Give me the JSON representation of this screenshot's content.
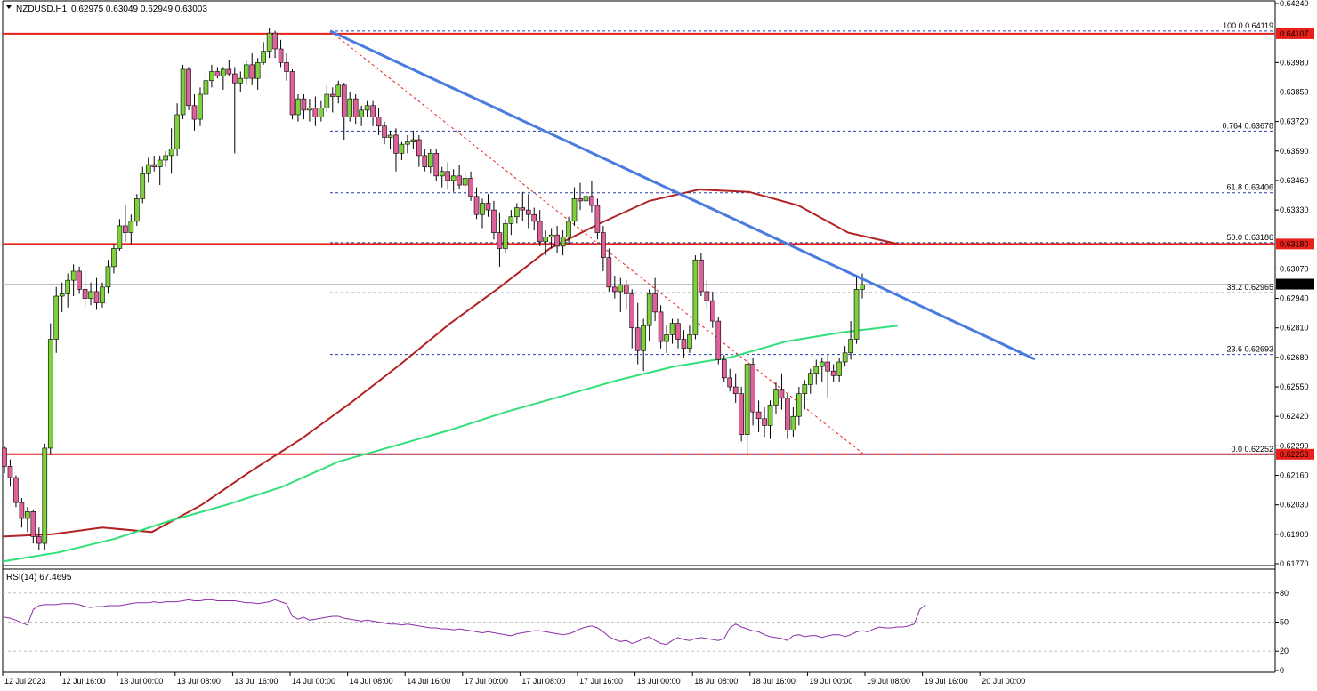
{
  "header": {
    "symbol": "NZDUSD,H1",
    "ohlc": "0.62975 0.63049 0.62949 0.63003"
  },
  "rsi_header": "RSI(14) 67.4695",
  "colors": {
    "bull": "#7fd13b",
    "bear": "#e0609a",
    "ma_short": "#b22222",
    "ma_long": "#32e07a",
    "trendline": "#4a7be0",
    "level": "#e8201a",
    "fib": "#2a3fa8",
    "rsi": "#8b2fa8"
  },
  "chart_data": [
    {
      "type": "candlestick",
      "symbol": "NZDUSD",
      "timeframe": "H1",
      "y_ticks": [
        "0.64240",
        "0.63980",
        "0.63850",
        "0.63720",
        "0.63590",
        "0.63460",
        "0.63330",
        "0.63070",
        "0.62940",
        "0.62810",
        "0.62680",
        "0.62550",
        "0.62420",
        "0.62290",
        "0.62160",
        "0.62030",
        "0.61900",
        "0.61770"
      ],
      "x_ticks": [
        "12 Jul 2023",
        "12 Jul 16:00",
        "13 Jul 00:00",
        "13 Jul 08:00",
        "13 Jul 16:00",
        "14 Jul 00:00",
        "14 Jul 08:00",
        "14 Jul 16:00",
        "17 Jul 00:00",
        "17 Jul 08:00",
        "17 Jul 16:00",
        "18 Jul 00:00",
        "18 Jul 08:00",
        "18 Jul 16:00",
        "19 Jul 00:00",
        "19 Jul 08:00",
        "19 Jul 16:00",
        "20 Jul 00:00"
      ],
      "ylim": [
        0.6177,
        0.6424
      ],
      "horizontal_levels": [
        {
          "value": 0.64107,
          "label": "0.64107"
        },
        {
          "value": 0.6318,
          "label": "0.63180"
        },
        {
          "value": 0.62253,
          "label": "0.62253"
        }
      ],
      "current_price": {
        "value": 0.63003,
        "label": "0.63003"
      },
      "fibonacci": [
        {
          "label": "100.0 0.64119",
          "value": 0.64119
        },
        {
          "label": "0.764 0.63678",
          "value": 0.63678
        },
        {
          "label": "61.8 0.63406",
          "value": 0.63406
        },
        {
          "label": "50.0 0.63186",
          "value": 0.63186
        },
        {
          "label": "38.2 0.62965",
          "value": 0.62965
        },
        {
          "label": "23.6 0.62693",
          "value": 0.62693
        },
        {
          "label": "0.0 0.62252",
          "value": 0.62252
        }
      ],
      "candles": [
        [
          0.6228,
          0.6229,
          0.6217,
          0.622
        ],
        [
          0.622,
          0.6223,
          0.6211,
          0.6215
        ],
        [
          0.6215,
          0.6216,
          0.6202,
          0.6204
        ],
        [
          0.6204,
          0.6206,
          0.6193,
          0.6197
        ],
        [
          0.6197,
          0.6202,
          0.6191,
          0.62
        ],
        [
          0.62,
          0.6201,
          0.6186,
          0.6189
        ],
        [
          0.6189,
          0.6193,
          0.6183,
          0.6186
        ],
        [
          0.6186,
          0.623,
          0.6183,
          0.6228
        ],
        [
          0.6228,
          0.6283,
          0.6225,
          0.6276
        ],
        [
          0.6276,
          0.6299,
          0.627,
          0.6295
        ],
        [
          0.6295,
          0.6301,
          0.6288,
          0.6296
        ],
        [
          0.6296,
          0.6305,
          0.629,
          0.6302
        ],
        [
          0.6302,
          0.6309,
          0.6295,
          0.6306
        ],
        [
          0.6306,
          0.6308,
          0.6296,
          0.6298
        ],
        [
          0.6298,
          0.6306,
          0.629,
          0.6294
        ],
        [
          0.6294,
          0.6301,
          0.6291,
          0.6297
        ],
        [
          0.6297,
          0.6303,
          0.6289,
          0.6292
        ],
        [
          0.6292,
          0.6301,
          0.629,
          0.6299
        ],
        [
          0.6299,
          0.6311,
          0.6296,
          0.6308
        ],
        [
          0.6308,
          0.6318,
          0.6305,
          0.6316
        ],
        [
          0.6316,
          0.6329,
          0.6315,
          0.6326
        ],
        [
          0.6326,
          0.6335,
          0.6319,
          0.6323
        ],
        [
          0.6323,
          0.6331,
          0.6318,
          0.6328
        ],
        [
          0.6328,
          0.634,
          0.6326,
          0.6338
        ],
        [
          0.6338,
          0.6352,
          0.6336,
          0.6349
        ],
        [
          0.6349,
          0.6356,
          0.6345,
          0.6353
        ],
        [
          0.6353,
          0.6357,
          0.635,
          0.6352
        ],
        [
          0.6352,
          0.6357,
          0.6344,
          0.6355
        ],
        [
          0.6355,
          0.6359,
          0.6352,
          0.6357
        ],
        [
          0.6357,
          0.6369,
          0.6349,
          0.636
        ],
        [
          0.636,
          0.638,
          0.6357,
          0.6375
        ],
        [
          0.6375,
          0.6397,
          0.6373,
          0.6395
        ],
        [
          0.6395,
          0.6396,
          0.6377,
          0.6379
        ],
        [
          0.6379,
          0.6384,
          0.6368,
          0.6373
        ],
        [
          0.6373,
          0.6387,
          0.637,
          0.6384
        ],
        [
          0.6384,
          0.6393,
          0.6382,
          0.639
        ],
        [
          0.639,
          0.6397,
          0.6387,
          0.6394
        ],
        [
          0.6394,
          0.6396,
          0.6391,
          0.6392
        ],
        [
          0.6392,
          0.6396,
          0.6386,
          0.6395
        ],
        [
          0.6395,
          0.6399,
          0.6392,
          0.6393
        ],
        [
          0.6393,
          0.6396,
          0.6358,
          0.6389
        ],
        [
          0.6389,
          0.6394,
          0.6385,
          0.6391
        ],
        [
          0.6391,
          0.6399,
          0.6388,
          0.6397
        ],
        [
          0.6397,
          0.6402,
          0.6388,
          0.6391
        ],
        [
          0.6391,
          0.64,
          0.6386,
          0.6398
        ],
        [
          0.6398,
          0.6407,
          0.6397,
          0.6403
        ],
        [
          0.6403,
          0.6413,
          0.64,
          0.6411
        ],
        [
          0.6411,
          0.6412,
          0.64,
          0.6404
        ],
        [
          0.6404,
          0.6408,
          0.6396,
          0.6398
        ],
        [
          0.6398,
          0.6402,
          0.639,
          0.6394
        ],
        [
          0.6394,
          0.6395,
          0.6373,
          0.6375
        ],
        [
          0.6375,
          0.6384,
          0.6372,
          0.6382
        ],
        [
          0.6382,
          0.6384,
          0.6373,
          0.6377
        ],
        [
          0.6377,
          0.6382,
          0.6372,
          0.6378
        ],
        [
          0.6378,
          0.6383,
          0.637,
          0.6374
        ],
        [
          0.6374,
          0.6381,
          0.6372,
          0.6378
        ],
        [
          0.6378,
          0.6388,
          0.6376,
          0.6384
        ],
        [
          0.6384,
          0.6387,
          0.6376,
          0.6383
        ],
        [
          0.6383,
          0.639,
          0.638,
          0.6388
        ],
        [
          0.6388,
          0.6389,
          0.6364,
          0.6374
        ],
        [
          0.6374,
          0.6385,
          0.6372,
          0.6382
        ],
        [
          0.6382,
          0.6384,
          0.6371,
          0.6374
        ],
        [
          0.6374,
          0.6379,
          0.637,
          0.6377
        ],
        [
          0.6377,
          0.6381,
          0.6374,
          0.6379
        ],
        [
          0.6379,
          0.6381,
          0.637,
          0.6374
        ],
        [
          0.6374,
          0.6378,
          0.6366,
          0.637
        ],
        [
          0.637,
          0.6372,
          0.6362,
          0.6365
        ],
        [
          0.6365,
          0.6368,
          0.636,
          0.6366
        ],
        [
          0.6366,
          0.6369,
          0.635,
          0.6358
        ],
        [
          0.6358,
          0.6363,
          0.6355,
          0.6362
        ],
        [
          0.6362,
          0.6366,
          0.6358,
          0.6363
        ],
        [
          0.6363,
          0.6368,
          0.636,
          0.6364
        ],
        [
          0.6364,
          0.6366,
          0.6352,
          0.6357
        ],
        [
          0.6357,
          0.636,
          0.635,
          0.6352
        ],
        [
          0.6352,
          0.636,
          0.6349,
          0.6358
        ],
        [
          0.6358,
          0.636,
          0.6346,
          0.6348
        ],
        [
          0.6348,
          0.6352,
          0.6343,
          0.635
        ],
        [
          0.635,
          0.6354,
          0.6342,
          0.6346
        ],
        [
          0.6346,
          0.6351,
          0.6341,
          0.6348
        ],
        [
          0.6348,
          0.6353,
          0.6342,
          0.6344
        ],
        [
          0.6344,
          0.635,
          0.6338,
          0.6347
        ],
        [
          0.6347,
          0.635,
          0.6337,
          0.6339
        ],
        [
          0.6339,
          0.6343,
          0.6329,
          0.6331
        ],
        [
          0.6331,
          0.6338,
          0.6325,
          0.6336
        ],
        [
          0.6336,
          0.634,
          0.633,
          0.6333
        ],
        [
          0.6333,
          0.6337,
          0.632,
          0.6323
        ],
        [
          0.6323,
          0.6332,
          0.6308,
          0.6316
        ],
        [
          0.6316,
          0.6329,
          0.6314,
          0.6327
        ],
        [
          0.6327,
          0.6333,
          0.6322,
          0.633
        ],
        [
          0.633,
          0.6336,
          0.6327,
          0.6334
        ],
        [
          0.6334,
          0.6341,
          0.6328,
          0.6333
        ],
        [
          0.6333,
          0.634,
          0.6325,
          0.6331
        ],
        [
          0.6331,
          0.6334,
          0.6324,
          0.6328
        ],
        [
          0.6328,
          0.6333,
          0.6317,
          0.6319
        ],
        [
          0.6319,
          0.6324,
          0.6313,
          0.6321
        ],
        [
          0.6321,
          0.6325,
          0.6316,
          0.6322
        ],
        [
          0.6322,
          0.6326,
          0.6314,
          0.6317
        ],
        [
          0.6317,
          0.6324,
          0.6313,
          0.6321
        ],
        [
          0.6321,
          0.633,
          0.6318,
          0.6328
        ],
        [
          0.6328,
          0.6343,
          0.6326,
          0.6338
        ],
        [
          0.6338,
          0.6345,
          0.6333,
          0.6337
        ],
        [
          0.6337,
          0.6343,
          0.6332,
          0.6339
        ],
        [
          0.6339,
          0.6346,
          0.6332,
          0.6335
        ],
        [
          0.6335,
          0.6338,
          0.632,
          0.6323
        ],
        [
          0.6323,
          0.6326,
          0.6306,
          0.6312
        ],
        [
          0.6312,
          0.6316,
          0.6297,
          0.6299
        ],
        [
          0.6299,
          0.6304,
          0.6294,
          0.6297
        ],
        [
          0.6297,
          0.6303,
          0.6288,
          0.63
        ],
        [
          0.63,
          0.6302,
          0.6289,
          0.6296
        ],
        [
          0.6296,
          0.6298,
          0.6272,
          0.6281
        ],
        [
          0.6281,
          0.6292,
          0.6265,
          0.6271
        ],
        [
          0.6271,
          0.6285,
          0.6262,
          0.6282
        ],
        [
          0.6282,
          0.6298,
          0.6275,
          0.6296
        ],
        [
          0.6296,
          0.6303,
          0.6284,
          0.6288
        ],
        [
          0.6288,
          0.6291,
          0.6272,
          0.6275
        ],
        [
          0.6275,
          0.6282,
          0.627,
          0.6278
        ],
        [
          0.6278,
          0.6285,
          0.6274,
          0.6283
        ],
        [
          0.6283,
          0.6285,
          0.6272,
          0.6276
        ],
        [
          0.6276,
          0.628,
          0.6268,
          0.6272
        ],
        [
          0.6272,
          0.6282,
          0.627,
          0.6278
        ],
        [
          0.6278,
          0.6313,
          0.6276,
          0.6311
        ],
        [
          0.6311,
          0.6314,
          0.6295,
          0.6297
        ],
        [
          0.6297,
          0.6302,
          0.6289,
          0.6293
        ],
        [
          0.6293,
          0.6297,
          0.6281,
          0.6284
        ],
        [
          0.6284,
          0.6286,
          0.6265,
          0.6267
        ],
        [
          0.6267,
          0.6269,
          0.6257,
          0.6259
        ],
        [
          0.6259,
          0.6263,
          0.6253,
          0.6255
        ],
        [
          0.6255,
          0.6261,
          0.6248,
          0.6252
        ],
        [
          0.6252,
          0.6255,
          0.6231,
          0.6234
        ],
        [
          0.6234,
          0.6268,
          0.6225,
          0.6265
        ],
        [
          0.6265,
          0.6268,
          0.6238,
          0.6244
        ],
        [
          0.6244,
          0.6249,
          0.6235,
          0.6241
        ],
        [
          0.6241,
          0.6246,
          0.6233,
          0.6238
        ],
        [
          0.6238,
          0.6249,
          0.6232,
          0.6247
        ],
        [
          0.6247,
          0.6257,
          0.6243,
          0.6254
        ],
        [
          0.6254,
          0.6261,
          0.6245,
          0.625
        ],
        [
          0.625,
          0.6252,
          0.6232,
          0.6236
        ],
        [
          0.6236,
          0.6246,
          0.6233,
          0.6242
        ],
        [
          0.6242,
          0.6255,
          0.6238,
          0.6252
        ],
        [
          0.6252,
          0.6258,
          0.6245,
          0.6256
        ],
        [
          0.6256,
          0.6263,
          0.6252,
          0.6261
        ],
        [
          0.6261,
          0.6267,
          0.6256,
          0.6264
        ],
        [
          0.6264,
          0.6268,
          0.6257,
          0.6266
        ],
        [
          0.6266,
          0.6269,
          0.625,
          0.6262
        ],
        [
          0.6262,
          0.6265,
          0.6257,
          0.626
        ],
        [
          0.626,
          0.6268,
          0.6257,
          0.6266
        ],
        [
          0.6266,
          0.6273,
          0.6264,
          0.627
        ],
        [
          0.627,
          0.6284,
          0.6267,
          0.6276
        ],
        [
          0.6276,
          0.6304,
          0.6274,
          0.6298
        ],
        [
          0.6298,
          0.6305,
          0.6294,
          0.63
        ]
      ],
      "moving_averages": [
        {
          "color": "#b22222",
          "values": [
            0.6189,
            0.619,
            0.6193,
            0.6191,
            0.6203,
            0.6218,
            0.6232,
            0.6248,
            0.6265,
            0.6283,
            0.6299,
            0.6316,
            0.6327,
            0.6337,
            0.6342,
            0.6341,
            0.6335,
            0.6323,
            0.6318
          ]
        },
        {
          "color": "#32e07a",
          "values": [
            0.6178,
            0.6182,
            0.6188,
            0.6196,
            0.6203,
            0.6211,
            0.6222,
            0.6229,
            0.6236,
            0.6244,
            0.6251,
            0.6258,
            0.6264,
            0.6268,
            0.6275,
            0.6279,
            0.6282
          ]
        }
      ],
      "rsi": {
        "levels": [
          "80",
          "50",
          "20",
          "0"
        ],
        "values": [
          55,
          54,
          52,
          49,
          47,
          63,
          67,
          68,
          68,
          68,
          69,
          69,
          69,
          68,
          66,
          65,
          66,
          66,
          67,
          67,
          67,
          68,
          69,
          70,
          70,
          70,
          71,
          70,
          71,
          71,
          71,
          72,
          73,
          72,
          72,
          73,
          73,
          72,
          72,
          72,
          72,
          71,
          70,
          70,
          69,
          70,
          71,
          73,
          71,
          69,
          56,
          53,
          55,
          52,
          53,
          54,
          55,
          56,
          56,
          54,
          53,
          52,
          51,
          52,
          51,
          50,
          49,
          48,
          48,
          47,
          48,
          47,
          46,
          45,
          44,
          44,
          43,
          43,
          42,
          43,
          42,
          41,
          40,
          39,
          40,
          39,
          38,
          37,
          36,
          38,
          39,
          40,
          41,
          41,
          40,
          39,
          38,
          37,
          38,
          40,
          43,
          45,
          46,
          44,
          40,
          35,
          32,
          30,
          31,
          28,
          30,
          33,
          35,
          31,
          28,
          27,
          31,
          34,
          32,
          31,
          33,
          34,
          33,
          32,
          31,
          33,
          44,
          48,
          45,
          43,
          41,
          40,
          37,
          35,
          34,
          33,
          31,
          36,
          37,
          35,
          36,
          36,
          34,
          36,
          37,
          37,
          35,
          37,
          40,
          41,
          40,
          43,
          45,
          44,
          44,
          45,
          45,
          46,
          48,
          63,
          68
        ]
      }
    }
  ]
}
